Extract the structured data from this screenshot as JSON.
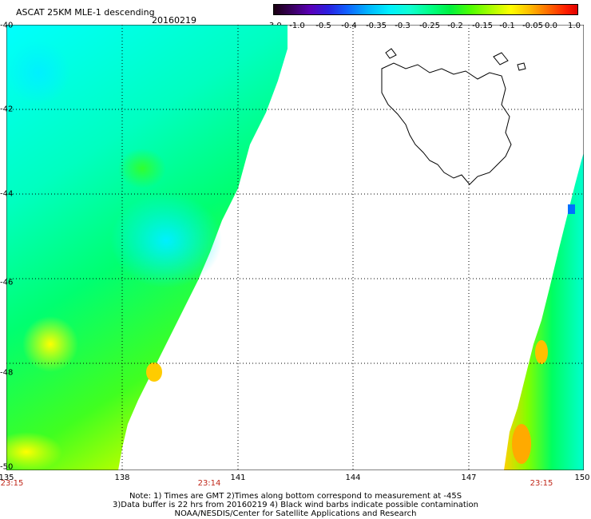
{
  "header": {
    "title": "ASCAT 25KM MLE-1 descending",
    "date": "20160219"
  },
  "colorbar": {
    "labels": [
      "-3.0",
      "-1.0",
      "-0.5",
      "-0.4",
      "-0.35",
      "-0.3",
      "-0.25",
      "-0.2",
      "-0.15",
      "-0.1",
      "-0.05",
      "0.0",
      "1.0"
    ]
  },
  "axes": {
    "y_ticks": [
      "-40",
      "-42",
      "-44",
      "-46",
      "-48",
      "-50"
    ],
    "x_ticks": [
      "135",
      "138",
      "141",
      "144",
      "147",
      "150"
    ],
    "times": [
      "23:15",
      "23:14",
      "23:15"
    ]
  },
  "notes": {
    "line1": "Note: 1) Times are GMT 2)Times along bottom correspond to measurement at -45S",
    "line2": "3)Data buffer is 22 hrs from 20160219 4) Black wind barbs indicate possible contamination",
    "line3": "NOAA/NESDIS/Center for Satellite Applications and Research"
  },
  "colors": {
    "cyan": "#00ffff",
    "aqua_green": "#00ffb0",
    "green": "#00ff40",
    "lime": "#7fff00",
    "yellow": "#ffff00",
    "orange": "#ff9900",
    "blue": "#0070ff"
  }
}
